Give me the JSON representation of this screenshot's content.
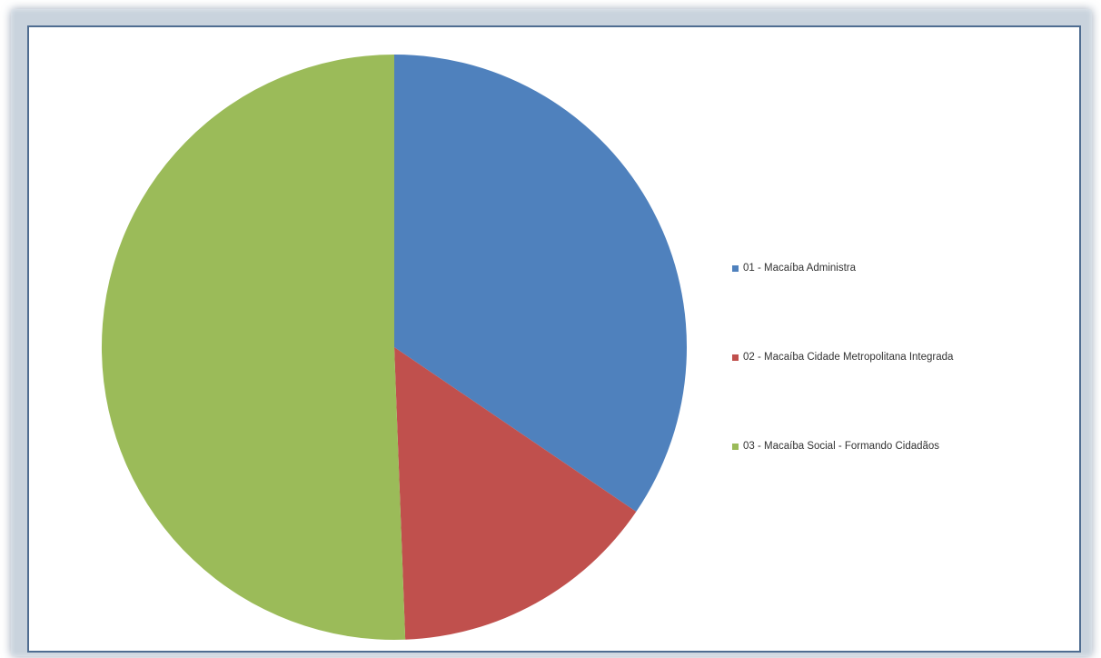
{
  "chart_data": {
    "type": "pie",
    "title": "",
    "start_angle_deg": 0,
    "direction": "clockwise",
    "legend_position": "right",
    "slices": [
      {
        "label": "01 - Macaíba Administra",
        "value": 34.5,
        "color": "#4f81bd"
      },
      {
        "label": "02 - Macaíba Cidade Metropolitana Integrada",
        "value": 14.9,
        "color": "#c0504d"
      },
      {
        "label": "03 - Macaíba Social - Formando Cidadãos",
        "value": 50.6,
        "color": "#9bbb59"
      }
    ]
  }
}
